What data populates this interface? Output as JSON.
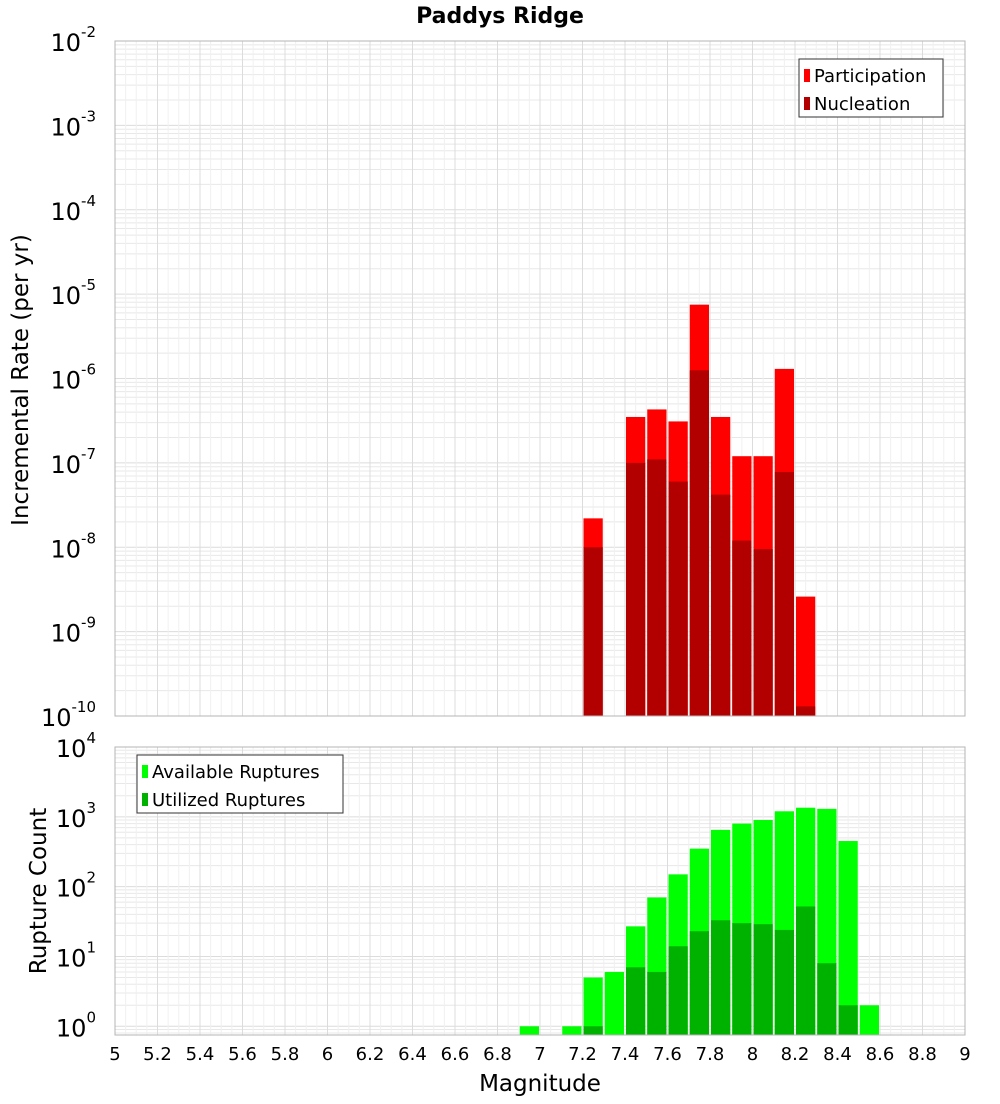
{
  "figure": {
    "title": "Paddys Ridge",
    "xlabel": "Magnitude",
    "x_ticks": [
      "5",
      "5.2",
      "5.4",
      "5.6",
      "5.8",
      "6",
      "6.2",
      "6.4",
      "6.6",
      "6.8",
      "7",
      "7.2",
      "7.4",
      "7.6",
      "7.8",
      "8",
      "8.2",
      "8.4",
      "8.6",
      "8.8",
      "9"
    ]
  },
  "colors": {
    "participation": "#ff0000",
    "nucleation": "#b20000",
    "available": "#00ff00",
    "utilized": "#00b200",
    "grid": "#e8e8e8",
    "frame": "#b4b4b4"
  },
  "chart_data": [
    {
      "type": "bar",
      "ylabel": "Incremental Rate (per yr)",
      "yscale": "log",
      "ylim": [
        1e-10,
        0.01
      ],
      "xlim": [
        5,
        9
      ],
      "bar_width": 0.1,
      "y_ticks": [
        {
          "base": "10",
          "exp": "-10"
        },
        {
          "base": "10",
          "exp": "-9"
        },
        {
          "base": "10",
          "exp": "-8"
        },
        {
          "base": "10",
          "exp": "-7"
        },
        {
          "base": "10",
          "exp": "-6"
        },
        {
          "base": "10",
          "exp": "-5"
        },
        {
          "base": "10",
          "exp": "-4"
        },
        {
          "base": "10",
          "exp": "-3"
        },
        {
          "base": "10",
          "exp": "-2"
        }
      ],
      "legend": {
        "position": "top-right",
        "items": [
          "Participation",
          "Nucleation"
        ]
      },
      "x": [
        7.25,
        7.35,
        7.45,
        7.55,
        7.65,
        7.75,
        7.85,
        7.95,
        8.05,
        8.15,
        8.25
      ],
      "series": [
        {
          "name": "Participation",
          "values": [
            2.2e-08,
            null,
            3.5e-07,
            4.3e-07,
            3.1e-07,
            7.5e-06,
            3.5e-07,
            1.2e-07,
            1.2e-07,
            1.3e-06,
            2.6e-09
          ]
        },
        {
          "name": "Nucleation",
          "values": [
            1e-08,
            null,
            1e-07,
            1.1e-07,
            6e-08,
            1.25e-06,
            4.2e-08,
            1.2e-08,
            9.5e-09,
            7.8e-08,
            1.3e-10
          ]
        }
      ]
    },
    {
      "type": "bar",
      "ylabel": "Rupture Count",
      "yscale": "log",
      "ylim": [
        0.75,
        10000
      ],
      "xlim": [
        5,
        9
      ],
      "bar_width": 0.1,
      "y_ticks": [
        {
          "base": "10",
          "exp": "0"
        },
        {
          "base": "10",
          "exp": "1"
        },
        {
          "base": "10",
          "exp": "2"
        },
        {
          "base": "10",
          "exp": "3"
        },
        {
          "base": "10",
          "exp": "4"
        }
      ],
      "legend": {
        "position": "top-left",
        "items": [
          "Available Ruptures",
          "Utilized Ruptures"
        ]
      },
      "x": [
        6.95,
        7.15,
        7.25,
        7.35,
        7.45,
        7.55,
        7.65,
        7.75,
        7.85,
        7.95,
        8.05,
        8.15,
        8.25,
        8.35,
        8.45,
        8.55
      ],
      "series": [
        {
          "name": "Available Ruptures",
          "values": [
            1,
            1,
            5,
            6,
            27,
            70,
            150,
            350,
            650,
            800,
            900,
            1200,
            1350,
            1300,
            450,
            2
          ]
        },
        {
          "name": "Utilized Ruptures",
          "values": [
            null,
            null,
            1,
            null,
            7,
            6,
            14,
            23,
            33,
            30,
            29,
            24,
            52,
            8,
            2,
            null
          ]
        }
      ]
    }
  ]
}
